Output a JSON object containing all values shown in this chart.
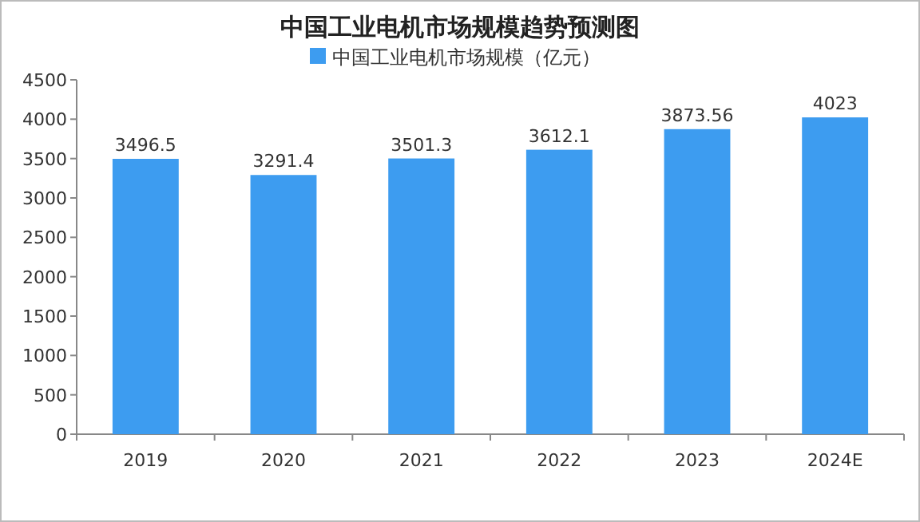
{
  "chart_data": {
    "type": "bar",
    "title": "中国工业电机市场规模趋势预测图",
    "categories": [
      "2019",
      "2020",
      "2021",
      "2022",
      "2023",
      "2024E"
    ],
    "series": [
      {
        "name": "中国工业电机市场规模（亿元）",
        "color": "#3d9cf0",
        "values": [
          3496.5,
          3291.4,
          3501.3,
          3612.1,
          3873.56,
          4023
        ]
      }
    ],
    "ylim": [
      0,
      4500
    ],
    "yticks": [
      0,
      500,
      1000,
      1500,
      2000,
      2500,
      3000,
      3500,
      4000,
      4500
    ],
    "data_labels": true,
    "legend": "top",
    "grid": false
  }
}
